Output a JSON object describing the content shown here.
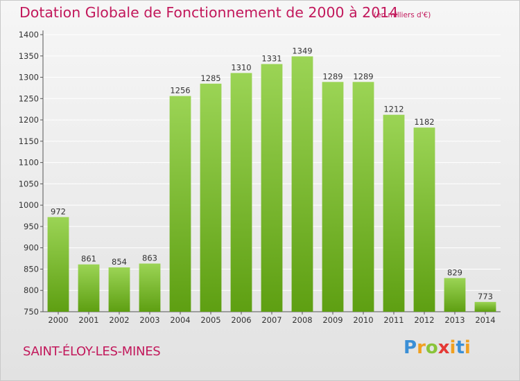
{
  "title": "Dotation Globale de Fonctionnement de 2000 à 2014",
  "unit_label": "(en milliers d'€)",
  "commune": "SAINT-ÉLOY-LES-MINES",
  "logo": [
    "P",
    "r",
    "o",
    "x",
    "i",
    "t",
    "i"
  ],
  "colors": {
    "accent": "#c2185b",
    "bar_top": "#9bd455",
    "bar_bottom": "#5e9f12",
    "grid": "#ffffff"
  },
  "chart_data": {
    "type": "bar",
    "categories": [
      "2000",
      "2001",
      "2002",
      "2003",
      "2004",
      "2005",
      "2006",
      "2007",
      "2008",
      "2009",
      "2010",
      "2011",
      "2012",
      "2013",
      "2014"
    ],
    "values": [
      972,
      861,
      854,
      863,
      1256,
      1285,
      1310,
      1331,
      1349,
      1289,
      1289,
      1212,
      1182,
      829,
      773
    ],
    "yticks": [
      750,
      800,
      850,
      900,
      950,
      1000,
      1050,
      1100,
      1150,
      1200,
      1250,
      1300,
      1350,
      1400
    ],
    "ylim": [
      750,
      1400
    ],
    "grid": true,
    "title": "Dotation Globale de Fonctionnement de 2000 à 2014",
    "xlabel": "",
    "ylabel": ""
  }
}
